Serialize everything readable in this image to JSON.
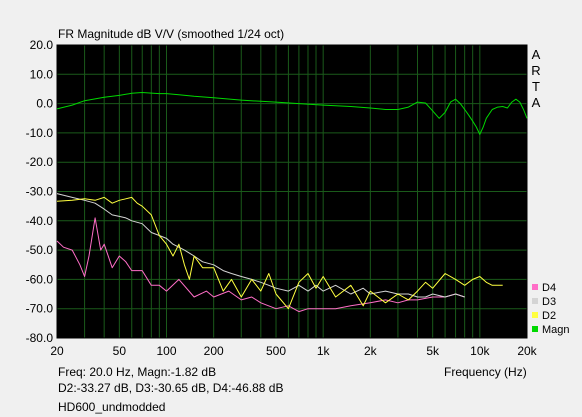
{
  "window": {
    "title": "FR Magnitude dB V/V (smoothed 1/24 oct)",
    "watermark": [
      "A",
      "R",
      "T",
      "A"
    ]
  },
  "readout": {
    "line1": "Freq: 20.0 Hz, Magn:-1.82 dB",
    "line2": "D2:-33.27 dB, D3:-30.65 dB, D4:-46.88 dB"
  },
  "caption": "HD600_undmodded",
  "colors": {
    "plot_bg": "#000000",
    "grid": "#1a5a1a",
    "Magn": "#00d800",
    "D2": "#ffff40",
    "D3": "#d4d4d4",
    "D4": "#ff6ec7"
  },
  "chart_data": {
    "type": "line",
    "title": "FR Magnitude dB V/V (smoothed 1/24 oct)",
    "xlabel": "Frequency (Hz)",
    "ylabel": "",
    "x_scale": "log",
    "xlim": [
      20,
      20000
    ],
    "ylim": [
      -80,
      20
    ],
    "grid": true,
    "legend_position": "bottom-right",
    "x_ticks": [
      {
        "value": 20,
        "label": "20"
      },
      {
        "value": 50,
        "label": "50"
      },
      {
        "value": 100,
        "label": "100"
      },
      {
        "value": 200,
        "label": "200"
      },
      {
        "value": 500,
        "label": "500"
      },
      {
        "value": 1000,
        "label": "1k"
      },
      {
        "value": 2000,
        "label": "2k"
      },
      {
        "value": 5000,
        "label": "5k"
      },
      {
        "value": 10000,
        "label": "10k"
      },
      {
        "value": 20000,
        "label": "20k"
      }
    ],
    "y_ticks": [
      20.0,
      10.0,
      0.0,
      -10.0,
      -20.0,
      -30.0,
      -40.0,
      -50.0,
      -60.0,
      -70.0,
      -80.0
    ],
    "y_tick_labels": [
      "20.0",
      "10.0",
      "0.0",
      "-10.0",
      "-20.0",
      "-30.0",
      "-40.0",
      "-50.0",
      "-60.0",
      "-70.0",
      "-80.0"
    ],
    "series": [
      {
        "name": "Magn",
        "color": "#00d800",
        "x": [
          20,
          25,
          30,
          40,
          50,
          60,
          70,
          80,
          90,
          100,
          120,
          150,
          200,
          300,
          400,
          500,
          700,
          1000,
          1500,
          2000,
          2500,
          3000,
          3500,
          4000,
          4500,
          5000,
          5500,
          6000,
          6500,
          7000,
          7500,
          8000,
          8500,
          9000,
          9500,
          10000,
          10500,
          11000,
          12000,
          13000,
          14000,
          15000,
          16000,
          17000,
          18000,
          19000,
          20000
        ],
        "y": [
          -1.8,
          -0.5,
          1.0,
          2.2,
          2.8,
          3.5,
          3.8,
          3.6,
          3.4,
          3.4,
          3.0,
          2.5,
          2.0,
          1.2,
          0.8,
          0.5,
          0.0,
          -0.5,
          -1.0,
          -1.5,
          -2.0,
          -2.0,
          -1.2,
          0.5,
          0.2,
          -2.5,
          -5.0,
          -3.0,
          0.5,
          1.5,
          0.0,
          -2.0,
          -4.0,
          -6.0,
          -8.0,
          -10.5,
          -8.0,
          -5.0,
          -2.0,
          -1.2,
          -1.0,
          -1.5,
          0.5,
          1.5,
          0.5,
          -2.0,
          -5.0
        ]
      },
      {
        "name": "D2",
        "color": "#ffff40",
        "x": [
          20,
          25,
          30,
          35,
          40,
          45,
          50,
          55,
          60,
          65,
          70,
          80,
          90,
          100,
          110,
          120,
          130,
          140,
          150,
          170,
          200,
          230,
          260,
          300,
          350,
          400,
          450,
          500,
          600,
          700,
          800,
          900,
          1000,
          1200,
          1500,
          1800,
          2000,
          2500,
          3000,
          3500,
          4000,
          4500,
          5000,
          6000,
          7000,
          8000,
          9000,
          10000,
          11000,
          12000,
          13000,
          14000
        ],
        "y": [
          -33.3,
          -33.0,
          -32.5,
          -33.0,
          -32.0,
          -34.0,
          -33.0,
          -32.5,
          -32.0,
          -34.0,
          -35.0,
          -38.0,
          -45.0,
          -48.0,
          -52.0,
          -48.0,
          -55.0,
          -60.0,
          -52.0,
          -56.0,
          -56.0,
          -64.0,
          -60.0,
          -66.0,
          -60.0,
          -64.0,
          -58.0,
          -65.0,
          -70.0,
          -61.0,
          -58.0,
          -63.0,
          -59.0,
          -66.0,
          -62.0,
          -69.0,
          -64.0,
          -68.0,
          -65.0,
          -67.0,
          -64.0,
          -61.0,
          -63.0,
          -58.0,
          -60.0,
          -62.0,
          -60.0,
          -59.0,
          -61.0,
          -62.0,
          -62.0,
          -62.0
        ]
      },
      {
        "name": "D3",
        "color": "#d4d4d4",
        "x": [
          20,
          25,
          30,
          35,
          40,
          45,
          50,
          55,
          60,
          70,
          80,
          90,
          100,
          110,
          120,
          130,
          150,
          170,
          200,
          230,
          260,
          300,
          350,
          400,
          450,
          500,
          600,
          700,
          800,
          900,
          1000,
          1200,
          1500,
          1800,
          2000,
          2500,
          3000,
          3500,
          4000,
          4500,
          5000,
          6000,
          7000,
          8000
        ],
        "y": [
          -30.7,
          -32.0,
          -33.0,
          -34.0,
          -36.0,
          -38.0,
          -38.5,
          -39.0,
          -40.0,
          -41.0,
          -44.0,
          -45.0,
          -46.0,
          -48.0,
          -49.0,
          -50.0,
          -52.0,
          -54.0,
          -55.0,
          -57.0,
          -58.0,
          -59.0,
          -60.0,
          -61.0,
          -62.0,
          -63.0,
          -64.0,
          -62.0,
          -64.0,
          -62.0,
          -64.0,
          -62.0,
          -65.0,
          -63.0,
          -65.0,
          -64.0,
          -65.0,
          -65.0,
          -66.0,
          -66.0,
          -65.0,
          -66.0,
          -65.0,
          -66.0
        ]
      },
      {
        "name": "D4",
        "color": "#ff6ec7",
        "x": [
          20,
          22,
          25,
          28,
          30,
          32,
          35,
          38,
          40,
          45,
          50,
          55,
          60,
          70,
          80,
          90,
          100,
          120,
          150,
          180,
          200,
          250,
          300,
          350,
          400,
          500,
          600,
          700,
          800,
          1000,
          1200,
          1500,
          2000,
          2500,
          3000,
          3500,
          4000,
          5000,
          6000,
          7000,
          8000
        ],
        "y": [
          -46.9,
          -49.0,
          -50.0,
          -55.0,
          -59.0,
          -52.0,
          -39.0,
          -50.0,
          -48.0,
          -56.0,
          -52.0,
          -54.0,
          -57.0,
          -57.0,
          -62.0,
          -62.0,
          -64.0,
          -60.0,
          -66.0,
          -64.0,
          -66.0,
          -64.0,
          -67.0,
          -66.0,
          -68.0,
          -70.0,
          -69.0,
          -71.0,
          -70.0,
          -70.0,
          -70.0,
          -69.0,
          -68.0,
          -67.0,
          -68.0,
          -67.0,
          -67.0,
          -66.0,
          -66.0,
          -65.0,
          -66.0
        ]
      }
    ],
    "legend": [
      {
        "name": "D4",
        "color": "#ff6ec7"
      },
      {
        "name": "D3",
        "color": "#d4d4d4"
      },
      {
        "name": "D2",
        "color": "#ffff40"
      },
      {
        "name": "Magn",
        "color": "#00d800"
      }
    ]
  }
}
